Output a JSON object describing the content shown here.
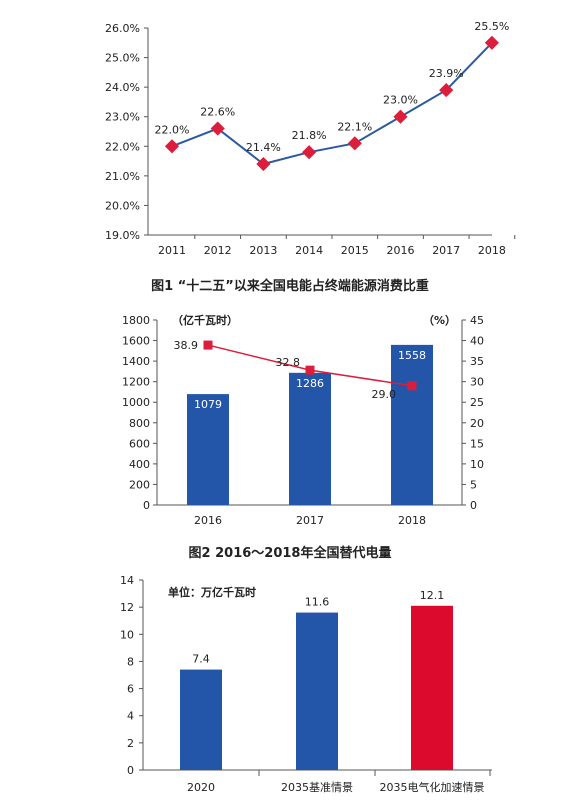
{
  "colors": {
    "line_blue": "#2c5aa0",
    "marker_red": "#dc1e3c",
    "bar_blue": "#2356a8",
    "bar_red": "#dc0a2d",
    "line_red": "#dc1e3c",
    "axis": "#555555",
    "grid": "#bbbbbb"
  },
  "chart_data": [
    {
      "type": "line",
      "title": "图1 “十二五”以来全国电能占终端能源消费比重",
      "categories": [
        "2011",
        "2012",
        "2013",
        "2014",
        "2015",
        "2016",
        "2017",
        "2018"
      ],
      "values": [
        22.0,
        22.6,
        21.4,
        21.8,
        22.1,
        23.0,
        23.9,
        25.5
      ],
      "data_labels": [
        "22.0%",
        "22.6%",
        "21.4%",
        "21.8%",
        "22.1%",
        "23.0%",
        "23.9%",
        "25.5%"
      ],
      "yticks": [
        "19.0%",
        "20.0%",
        "21.0%",
        "22.0%",
        "23.0%",
        "24.0%",
        "25.0%",
        "26.0%"
      ],
      "ylim": [
        19.0,
        26.0
      ],
      "grid": false
    },
    {
      "type": "bar",
      "title": "图2 2016～2018年全国替代电量",
      "categories": [
        "2016",
        "2017",
        "2018"
      ],
      "series": [
        {
          "values": [
            1079,
            1286,
            1558
          ]
        },
        {
          "type": "line",
          "values": [
            38.9,
            32.8,
            29.0
          ]
        }
      ],
      "bar_labels": [
        "1079",
        "1286",
        "1558"
      ],
      "line_labels": [
        "38.9",
        "32.8",
        "29.0"
      ],
      "y_left_unit": "（亿千瓦时）",
      "y_right_unit": "（%）",
      "y_left_ticks": [
        "0",
        "200",
        "400",
        "600",
        "800",
        "1000",
        "1200",
        "1400",
        "1600",
        "1800"
      ],
      "y_right_ticks": [
        "0",
        "5",
        "10",
        "15",
        "20",
        "25",
        "30",
        "35",
        "40",
        "45"
      ],
      "ylim_left": [
        0,
        1800
      ],
      "ylim_right": [
        0,
        45
      ],
      "grid": false
    },
    {
      "type": "bar",
      "categories": [
        "2020",
        "2035基准情景",
        "2035电气化加速情景"
      ],
      "values": [
        7.4,
        11.6,
        12.1
      ],
      "bar_labels": [
        "7.4",
        "11.6",
        "12.1"
      ],
      "bar_colors": [
        "blue",
        "blue",
        "red"
      ],
      "unit_label": "单位：万亿千瓦时",
      "yticks": [
        "0",
        "2",
        "4",
        "6",
        "8",
        "10",
        "12",
        "14"
      ],
      "ylim": [
        0,
        14
      ],
      "grid": false
    }
  ]
}
